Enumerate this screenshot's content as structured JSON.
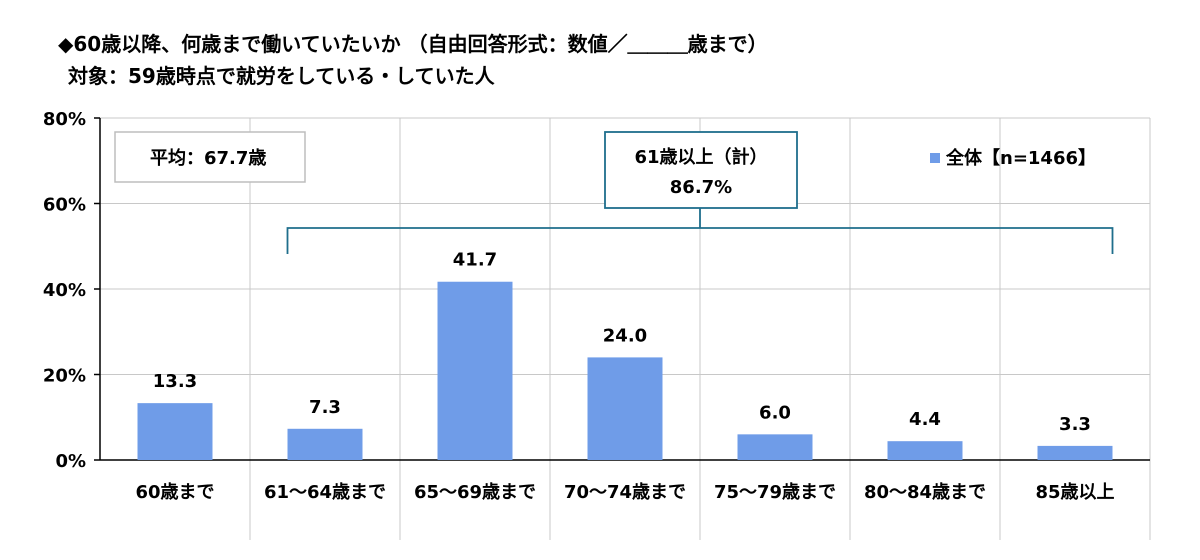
{
  "title_line1": "◆60歳以降、何歳まで働いていたいか （自由回答形式：数値／＿＿＿歳まで）",
  "title_line2": "対象：59歳時点で就労をしている・していた人",
  "chart_data": {
    "type": "bar",
    "categories": [
      "60歳まで",
      "61～64歳まで",
      "65～69歳まで",
      "70～74歳まで",
      "75～79歳まで",
      "80～84歳まで",
      "85歳以上"
    ],
    "series": [
      {
        "name": "全体【n=1466】",
        "values": [
          13.3,
          7.3,
          41.7,
          24.0,
          6.0,
          4.4,
          3.3
        ],
        "color": "#6f9ce8"
      }
    ],
    "y_ticks": [
      "0%",
      "20%",
      "40%",
      "60%",
      "80%"
    ],
    "ylim": [
      0,
      80
    ],
    "grid": true,
    "legend_position": "top-right",
    "annotations": {
      "average": "平均：67.7歳",
      "bracket_label_line1": "61歳以上（計）",
      "bracket_label_line2": "86.7%",
      "bracket_color": "#1f6e8c"
    }
  }
}
